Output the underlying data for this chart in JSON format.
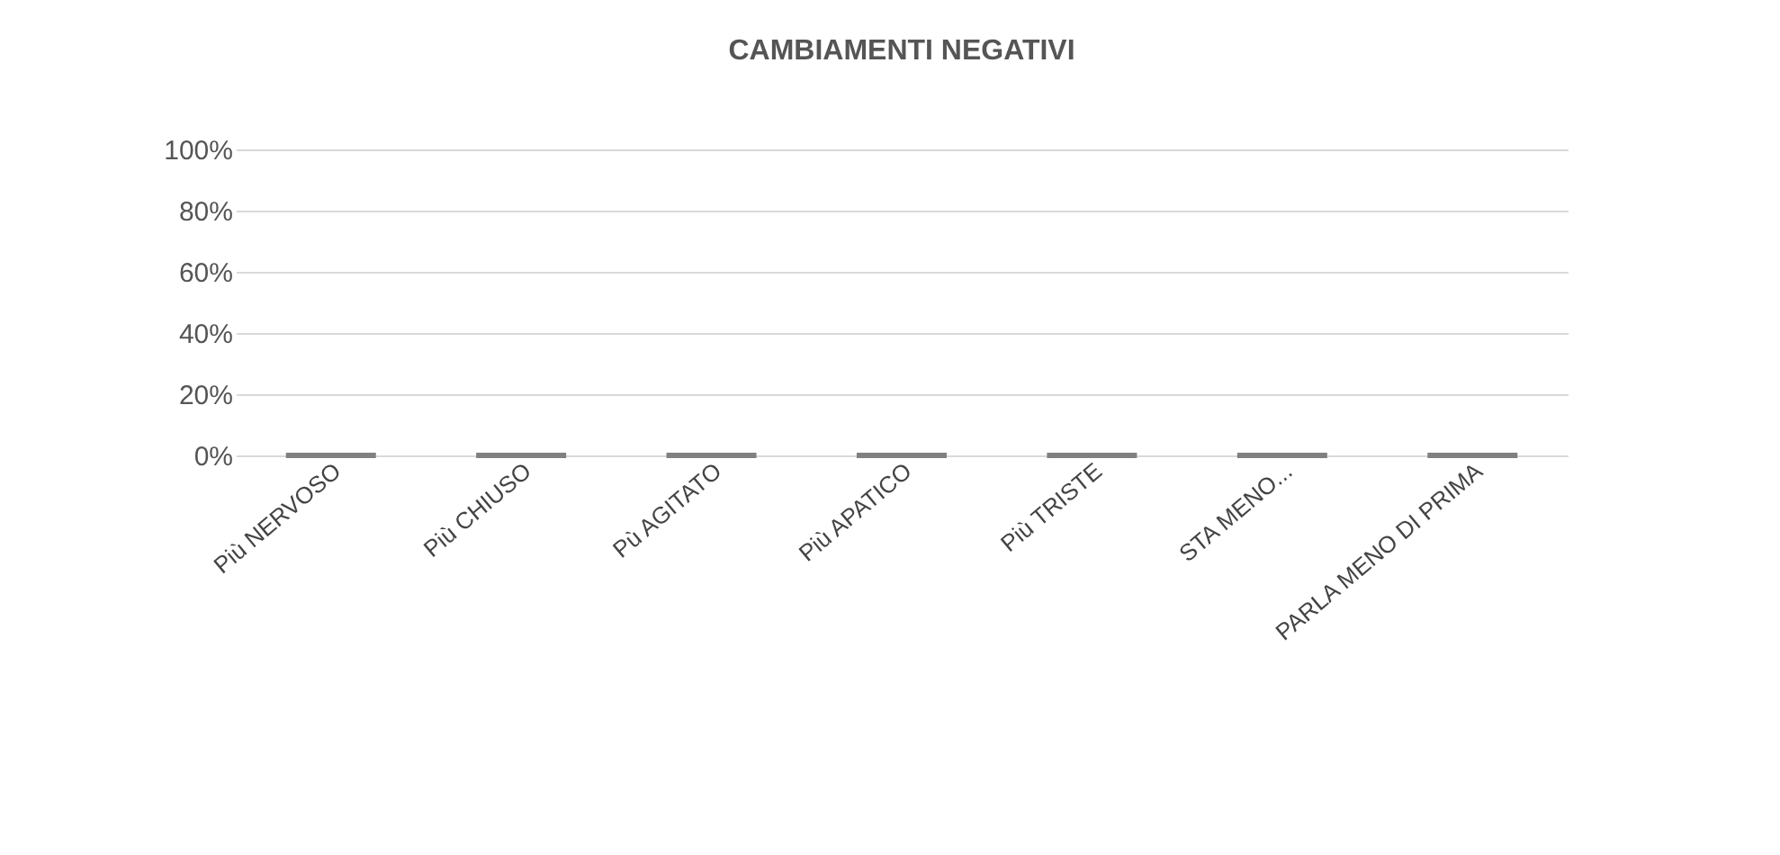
{
  "chart_data": {
    "type": "bar",
    "title": "CAMBIAMENTI NEGATIVI",
    "categories": [
      "Più NERVOSO",
      "Più CHIUSO",
      "Pù AGITATO",
      "Più APATICO",
      "Più TRISTE",
      "STA MENO...",
      "PARLA MENO DI PRIMA"
    ],
    "values": [
      0,
      0,
      0,
      0,
      0,
      0,
      0
    ],
    "color": "#808080",
    "ylim": [
      0,
      100
    ],
    "yticks": [
      {
        "value": 0,
        "label": "0%"
      },
      {
        "value": 20,
        "label": "20%"
      },
      {
        "value": 40,
        "label": "40%"
      },
      {
        "value": 60,
        "label": "60%"
      },
      {
        "value": 80,
        "label": "80%"
      },
      {
        "value": 100,
        "label": "100%"
      }
    ],
    "grid": true
  }
}
